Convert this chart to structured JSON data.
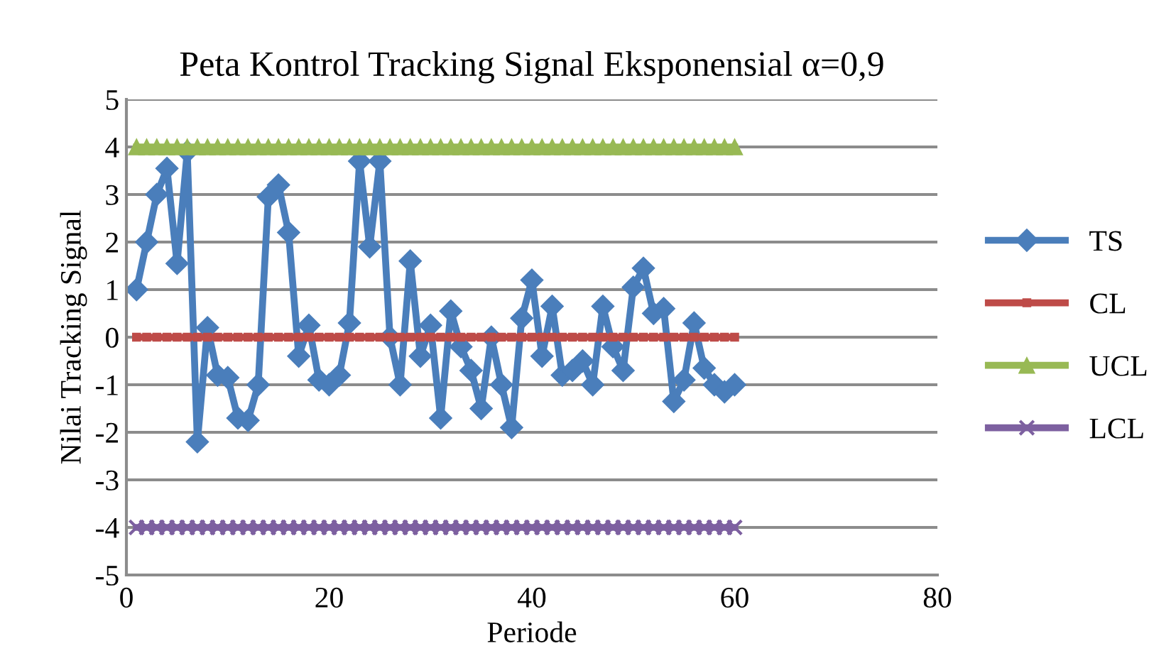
{
  "chart_data": {
    "type": "line",
    "title": "Peta Kontrol Tracking Signal Eksponensial α=0,9",
    "xlabel": "Periode",
    "ylabel": "Nilai Tracking Signal",
    "x": [
      1,
      2,
      3,
      4,
      5,
      6,
      7,
      8,
      9,
      10,
      11,
      12,
      13,
      14,
      15,
      16,
      17,
      18,
      19,
      20,
      21,
      22,
      23,
      24,
      25,
      26,
      27,
      28,
      29,
      30,
      31,
      32,
      33,
      34,
      35,
      36,
      37,
      38,
      39,
      40,
      41,
      42,
      43,
      44,
      45,
      46,
      47,
      48,
      49,
      50,
      51,
      52,
      53,
      54,
      55,
      56,
      57,
      58,
      59,
      60
    ],
    "series": [
      {
        "name": "TS",
        "color": "#4a7ebb",
        "marker": "diamond",
        "values": [
          1.0,
          2.0,
          3.0,
          3.55,
          1.55,
          3.9,
          -2.2,
          0.2,
          -0.8,
          -0.85,
          -1.7,
          -1.75,
          -1.0,
          2.95,
          3.2,
          2.2,
          -0.4,
          0.25,
          -0.9,
          -1.0,
          -0.8,
          0.3,
          3.7,
          1.9,
          3.7,
          0.0,
          -1.0,
          1.6,
          -0.4,
          0.25,
          -1.7,
          0.55,
          -0.2,
          -0.7,
          -1.5,
          0.0,
          -1.0,
          -1.9,
          0.4,
          1.2,
          -0.4,
          0.65,
          -0.8,
          -0.7,
          -0.5,
          -1.0,
          0.65,
          -0.2,
          -0.7,
          1.05,
          1.45,
          0.5,
          0.6,
          -1.35,
          -0.9,
          0.3,
          -0.65,
          -1.0,
          -1.15,
          -1.0
        ]
      },
      {
        "name": "CL",
        "color": "#be4b48",
        "marker": "square",
        "values": [
          0,
          0,
          0,
          0,
          0,
          0,
          0,
          0,
          0,
          0,
          0,
          0,
          0,
          0,
          0,
          0,
          0,
          0,
          0,
          0,
          0,
          0,
          0,
          0,
          0,
          0,
          0,
          0,
          0,
          0,
          0,
          0,
          0,
          0,
          0,
          0,
          0,
          0,
          0,
          0,
          0,
          0,
          0,
          0,
          0,
          0,
          0,
          0,
          0,
          0,
          0,
          0,
          0,
          0,
          0,
          0,
          0,
          0,
          0,
          0
        ]
      },
      {
        "name": "UCL",
        "color": "#98b954",
        "marker": "triangle",
        "values": [
          4,
          4,
          4,
          4,
          4,
          4,
          4,
          4,
          4,
          4,
          4,
          4,
          4,
          4,
          4,
          4,
          4,
          4,
          4,
          4,
          4,
          4,
          4,
          4,
          4,
          4,
          4,
          4,
          4,
          4,
          4,
          4,
          4,
          4,
          4,
          4,
          4,
          4,
          4,
          4,
          4,
          4,
          4,
          4,
          4,
          4,
          4,
          4,
          4,
          4,
          4,
          4,
          4,
          4,
          4,
          4,
          4,
          4,
          4,
          4
        ]
      },
      {
        "name": "LCL",
        "color": "#7d60a0",
        "marker": "cross",
        "values": [
          -4,
          -4,
          -4,
          -4,
          -4,
          -4,
          -4,
          -4,
          -4,
          -4,
          -4,
          -4,
          -4,
          -4,
          -4,
          -4,
          -4,
          -4,
          -4,
          -4,
          -4,
          -4,
          -4,
          -4,
          -4,
          -4,
          -4,
          -4,
          -4,
          -4,
          -4,
          -4,
          -4,
          -4,
          -4,
          -4,
          -4,
          -4,
          -4,
          -4,
          -4,
          -4,
          -4,
          -4,
          -4,
          -4,
          -4,
          -4,
          -4,
          -4,
          -4,
          -4,
          -4,
          -4,
          -4,
          -4,
          -4,
          -4,
          -4,
          -4
        ]
      }
    ],
    "xlim": [
      0,
      80
    ],
    "xticks": [
      0,
      20,
      40,
      60,
      80
    ],
    "ylim": [
      -5,
      5
    ],
    "yticks": [
      -5,
      -4,
      -3,
      -2,
      -1,
      0,
      1,
      2,
      3,
      4,
      5
    ],
    "grid": "y",
    "legend": "right",
    "line_style": "solid"
  }
}
